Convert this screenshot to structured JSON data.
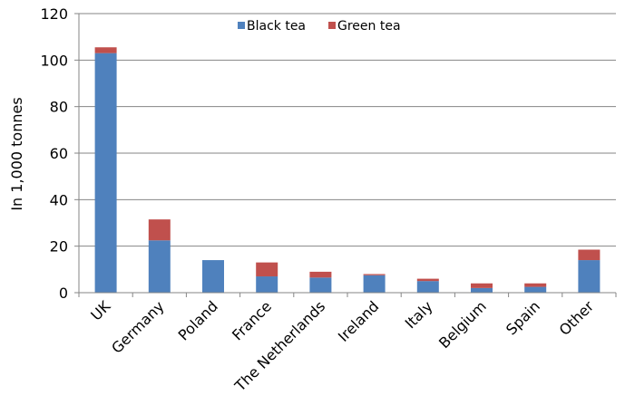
{
  "chart_data": {
    "type": "bar",
    "stacked": true,
    "title": "",
    "xlabel": "",
    "ylabel": "In 1,000 tonnes",
    "ylim": [
      0,
      120
    ],
    "yticks": [
      0,
      20,
      40,
      60,
      80,
      100,
      120
    ],
    "grid": true,
    "legend_position": "top-center",
    "categories": [
      "UK",
      "Germany",
      "Poland",
      "France",
      "The Netherlands",
      "Ireland",
      "Italy",
      "Belgium",
      "Spain",
      "Other"
    ],
    "series": [
      {
        "name": "Black tea",
        "color": "#4f81bd",
        "values": [
          103,
          22.5,
          14,
          7,
          6.5,
          7.5,
          5,
          2,
          2.5,
          14
        ]
      },
      {
        "name": "Green tea",
        "color": "#c0504d",
        "values": [
          2.5,
          9,
          0,
          6,
          2.5,
          0.5,
          1,
          2,
          1.5,
          4.5
        ]
      }
    ]
  }
}
